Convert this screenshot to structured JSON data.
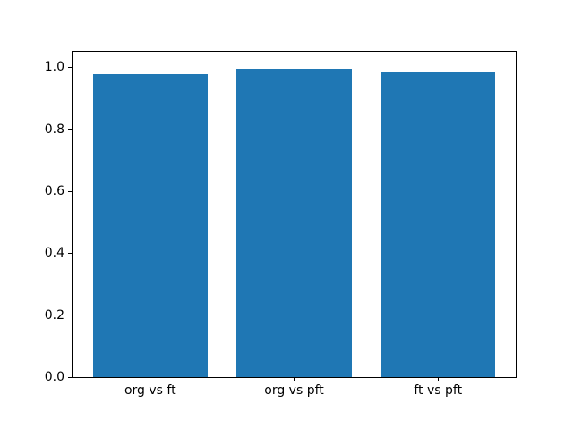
{
  "figure": {
    "background_color": "#ffffff",
    "spine_color": "#000000",
    "tick_color": "#000000"
  },
  "chart_data": {
    "type": "bar",
    "title": "",
    "xlabel": "",
    "ylabel": "",
    "categories": [
      "org vs ft",
      "org vs pft",
      "ft vs pft"
    ],
    "values": [
      0.978,
      0.996,
      0.984
    ],
    "bar_color": "#1f77b4",
    "bar_width": 0.8,
    "xlim": [
      -0.54,
      2.54
    ],
    "ylim": [
      0,
      1.05
    ],
    "yticks": [
      0.0,
      0.2,
      0.4,
      0.6,
      0.8,
      1.0
    ],
    "ytick_labels": [
      "0.0",
      "0.2",
      "0.4",
      "0.6",
      "0.8",
      "1.0"
    ],
    "grid": false,
    "legend": null
  }
}
